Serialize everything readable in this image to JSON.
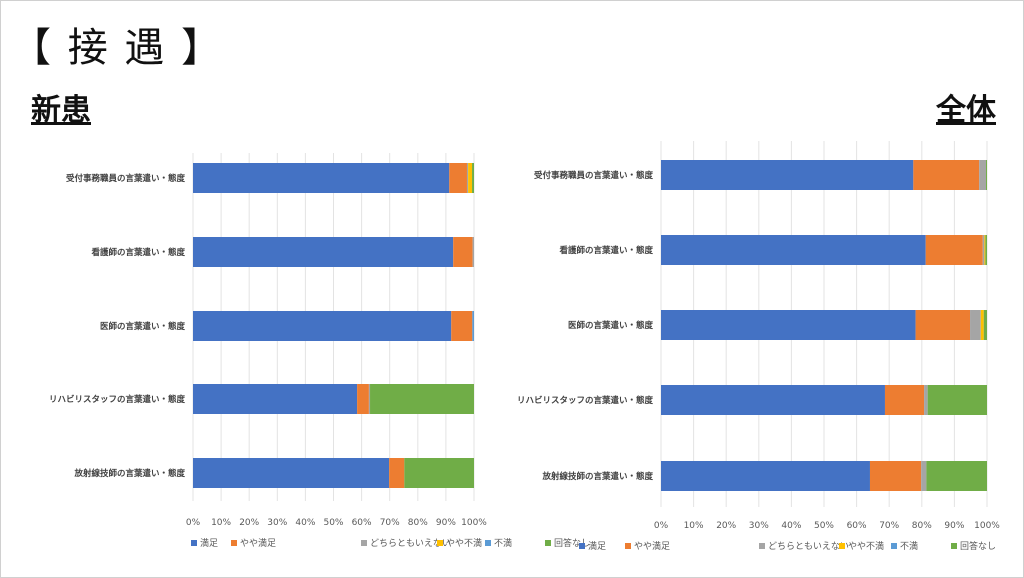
{
  "title": "【 接 遇 】",
  "colors": {
    "満足": "#4472c4",
    "やや満足": "#ed7d31",
    "どちらともいえない": "#a5a5a5",
    "やや不満": "#ffc000",
    "不満": "#5b9bd5",
    "回答なし": "#70ad47"
  },
  "chart_data": [
    {
      "type": "bar",
      "stacked": "percent",
      "orientation": "horizontal",
      "title": "新患",
      "categories": [
        "受付事務職員の言葉遣い・態度",
        "看護師の言葉遣い・態度",
        "医師の言葉遣い・態度",
        "リハビリスタッフの言葉遣い・態度",
        "放射線技師の言葉遣い・態度"
      ],
      "xticks": [
        "0%",
        "10%",
        "20%",
        "30%",
        "40%",
        "50%",
        "60%",
        "70%",
        "80%",
        "90%",
        "100%"
      ],
      "xlim": [
        0,
        100
      ],
      "grid": true,
      "legend_position": "bottom",
      "series": [
        {
          "name": "満足",
          "values": [
            91.2,
            92.6,
            91.9,
            58.4,
            69.8
          ]
        },
        {
          "name": "やや満足",
          "values": [
            6.3,
            6.9,
            7.5,
            4.2,
            5.4
          ]
        },
        {
          "name": "どちらともいえない",
          "values": [
            0.4,
            0.5,
            0,
            0.4,
            0
          ]
        },
        {
          "name": "やや不満",
          "values": [
            1.4,
            0,
            0,
            0,
            0
          ]
        },
        {
          "name": "不満",
          "values": [
            0,
            0,
            0.6,
            0,
            0
          ]
        },
        {
          "name": "回答なし",
          "values": [
            0.7,
            0,
            0,
            37.0,
            24.8
          ]
        }
      ]
    },
    {
      "type": "bar",
      "stacked": "percent",
      "orientation": "horizontal",
      "title": "全体",
      "categories": [
        "受付事務職員の言葉遣い・態度",
        "看護師の言葉遣い・態度",
        "医師の言葉遣い・態度",
        "リハビリスタッフの言葉遣い・態度",
        "放射線技師の言葉遣い・態度"
      ],
      "xticks": [
        "0%",
        "10%",
        "20%",
        "30%",
        "40%",
        "50%",
        "60%",
        "70%",
        "80%",
        "90%",
        "100%"
      ],
      "xlim": [
        0,
        100
      ],
      "grid": true,
      "legend_position": "bottom",
      "series": [
        {
          "name": "満足",
          "values": [
            77.4,
            81.2,
            78.1,
            68.7,
            64.1
          ]
        },
        {
          "name": "やや満足",
          "values": [
            20.2,
            17.5,
            16.7,
            12.0,
            15.7
          ]
        },
        {
          "name": "どちらともいえない",
          "values": [
            2.1,
            0.5,
            3.3,
            1.1,
            1.6
          ]
        },
        {
          "name": "やや不満",
          "values": [
            0,
            0.3,
            0.9,
            0,
            0
          ]
        },
        {
          "name": "不満",
          "values": [
            0,
            0,
            0,
            0,
            0
          ]
        },
        {
          "name": "回答なし",
          "values": [
            0.3,
            0.5,
            1.0,
            18.2,
            18.6
          ]
        }
      ]
    }
  ]
}
